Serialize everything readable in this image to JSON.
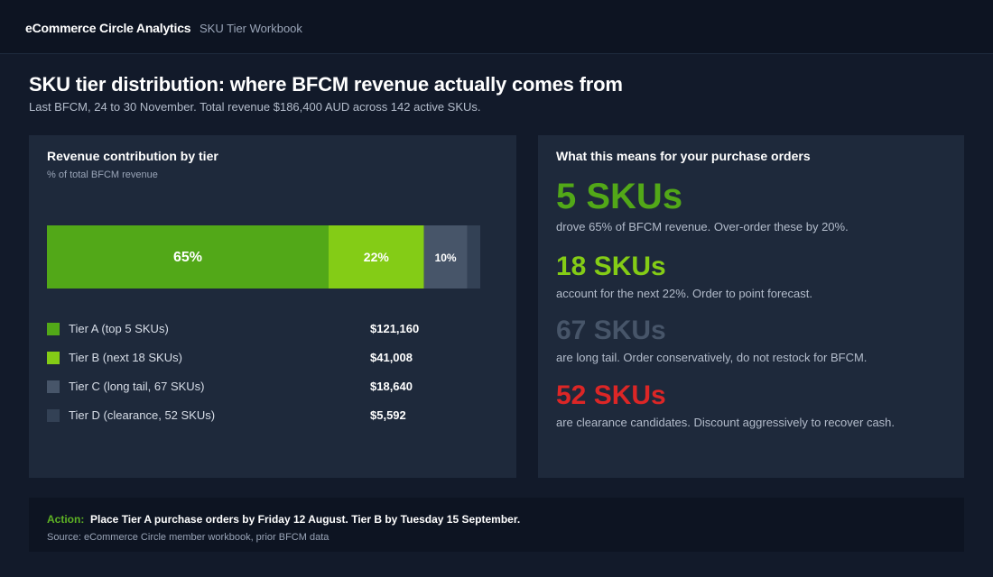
{
  "header": {
    "brand": "eCommerce Circle Analytics",
    "workbook": "SKU Tier Workbook"
  },
  "page": {
    "title": "SKU tier distribution: where BFCM revenue actually comes from",
    "subtitle": "Last BFCM, 24 to 30 November. Total revenue $186,400 AUD across 142 active SKUs."
  },
  "left_panel": {
    "title": "Revenue contribution by tier",
    "subtitle": "% of total BFCM revenue"
  },
  "chart_data": {
    "type": "bar",
    "orientation": "horizontal-stacked",
    "unit": "%",
    "title": "Revenue contribution by tier",
    "ylabel": "% of total BFCM revenue",
    "categories": [
      "Tier A (top 5 SKUs)",
      "Tier B (next 18 SKUs)",
      "Tier C (long tail, 67 SKUs)",
      "Tier D (clearance, 52 SKUs)"
    ],
    "values": [
      65,
      22,
      10,
      3
    ],
    "data_labels": [
      "65%",
      "22%",
      "10%",
      ""
    ],
    "revenue_labels": [
      "$121,160",
      "$41,008",
      "$18,640",
      "$5,592"
    ],
    "colors": [
      "#52a818",
      "#84cc16",
      "#475569",
      "#334155"
    ],
    "xlim": [
      0,
      100
    ],
    "grid": false,
    "legend": "bottom"
  },
  "right_panel": {
    "title": "What this means for your purchase orders",
    "items": [
      {
        "big": "5 SKUs",
        "text": "drove 65% of BFCM revenue. Over-order these by 20%.",
        "color": "#52a818"
      },
      {
        "big": "18 SKUs",
        "text": "account for the next 22%. Order to point forecast.",
        "color": "#84cc16"
      },
      {
        "big": "67 SKUs",
        "text": "are long tail. Order conservatively, do not restock for BFCM.",
        "color": "#475569"
      },
      {
        "big": "52 SKUs",
        "text": "are clearance candidates. Discount aggressively to recover cash.",
        "color": "#dc2626"
      }
    ]
  },
  "footer": {
    "action_label": "Action:",
    "action_text": "Place Tier A purchase orders by Friday 12 August. Tier B by Tuesday 15 September.",
    "source": "Source: eCommerce Circle member workbook, prior BFCM data"
  }
}
